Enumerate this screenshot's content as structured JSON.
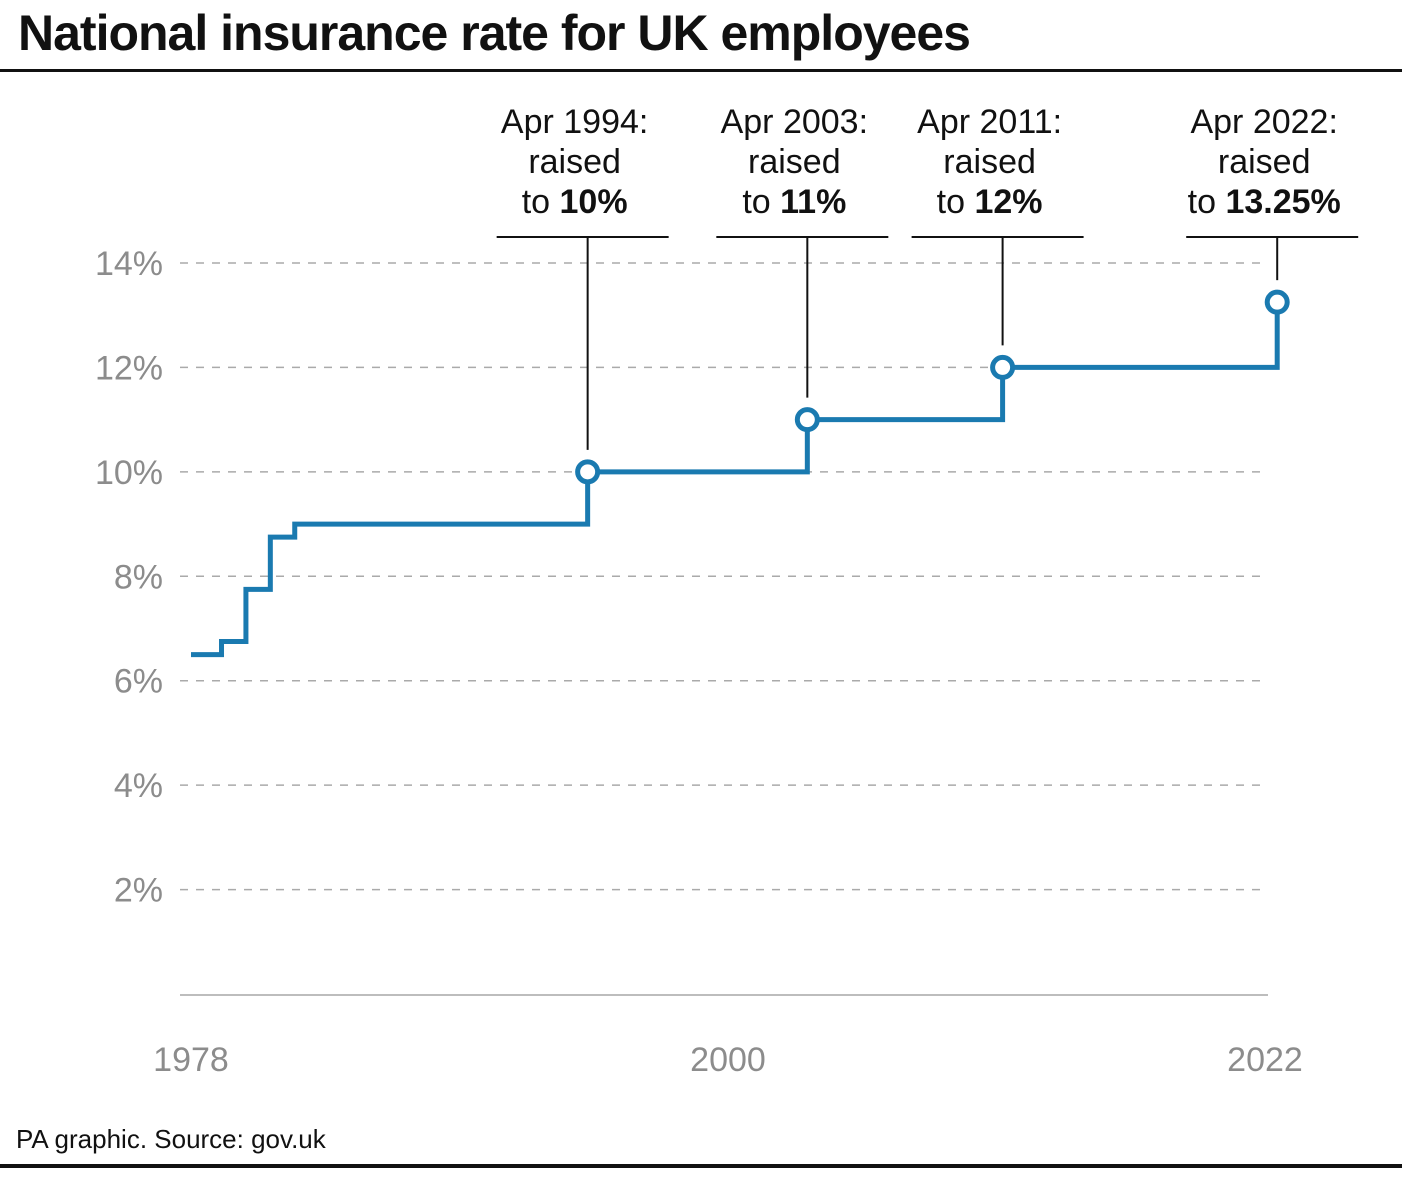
{
  "title": "National insurance rate for UK employees",
  "source": "PA graphic. Source: gov.uk",
  "colors": {
    "line": "#1a7ab0",
    "grid": "#aaaaaa",
    "axis": "#bdbdbd",
    "tick": "#8c8c8c",
    "text": "#111111"
  },
  "chart_data": {
    "type": "line",
    "step": true,
    "title": "National insurance rate for UK employees",
    "xlabel": "",
    "ylabel": "",
    "xlim": [
      1978,
      2022
    ],
    "ylim": [
      0,
      14
    ],
    "grid": true,
    "x_ticks": [
      {
        "value": 1978,
        "label": "1978"
      },
      {
        "value": 2000,
        "label": "2000"
      },
      {
        "value": 2022,
        "label": "2022"
      }
    ],
    "y_ticks": [
      {
        "value": 2,
        "label": "2%"
      },
      {
        "value": 4,
        "label": "4%"
      },
      {
        "value": 6,
        "label": "6%"
      },
      {
        "value": 8,
        "label": "8%"
      },
      {
        "value": 10,
        "label": "10%"
      },
      {
        "value": 12,
        "label": "12%"
      },
      {
        "value": 14,
        "label": "14%"
      }
    ],
    "series": [
      {
        "values": [
          {
            "x": 1978.0,
            "y": 6.5
          },
          {
            "x": 1979.25,
            "y": 6.75
          },
          {
            "x": 1980.25,
            "y": 7.75
          },
          {
            "x": 1981.25,
            "y": 8.75
          },
          {
            "x": 1982.25,
            "y": 9.0
          },
          {
            "x": 1994.25,
            "y": 10.0
          },
          {
            "x": 2003.25,
            "y": 11.0
          },
          {
            "x": 2011.25,
            "y": 12.0
          },
          {
            "x": 2022.25,
            "y": 13.25
          }
        ],
        "end_x": 2022.5
      }
    ],
    "annotations": [
      {
        "x": 1994.25,
        "y": 10.0,
        "lines": [
          "Apr 1994:",
          "raised"
        ],
        "prefix": "to ",
        "value": "10%"
      },
      {
        "x": 2003.25,
        "y": 11.0,
        "lines": [
          "Apr 2003:",
          "raised"
        ],
        "prefix": "to ",
        "value": "11%"
      },
      {
        "x": 2011.25,
        "y": 12.0,
        "lines": [
          "Apr 2011:",
          "raised"
        ],
        "prefix": "to ",
        "value": "12%"
      },
      {
        "x": 2022.25,
        "y": 13.25,
        "lines": [
          "Apr 2022:",
          "raised"
        ],
        "prefix": "to ",
        "value": "13.25%"
      }
    ]
  }
}
